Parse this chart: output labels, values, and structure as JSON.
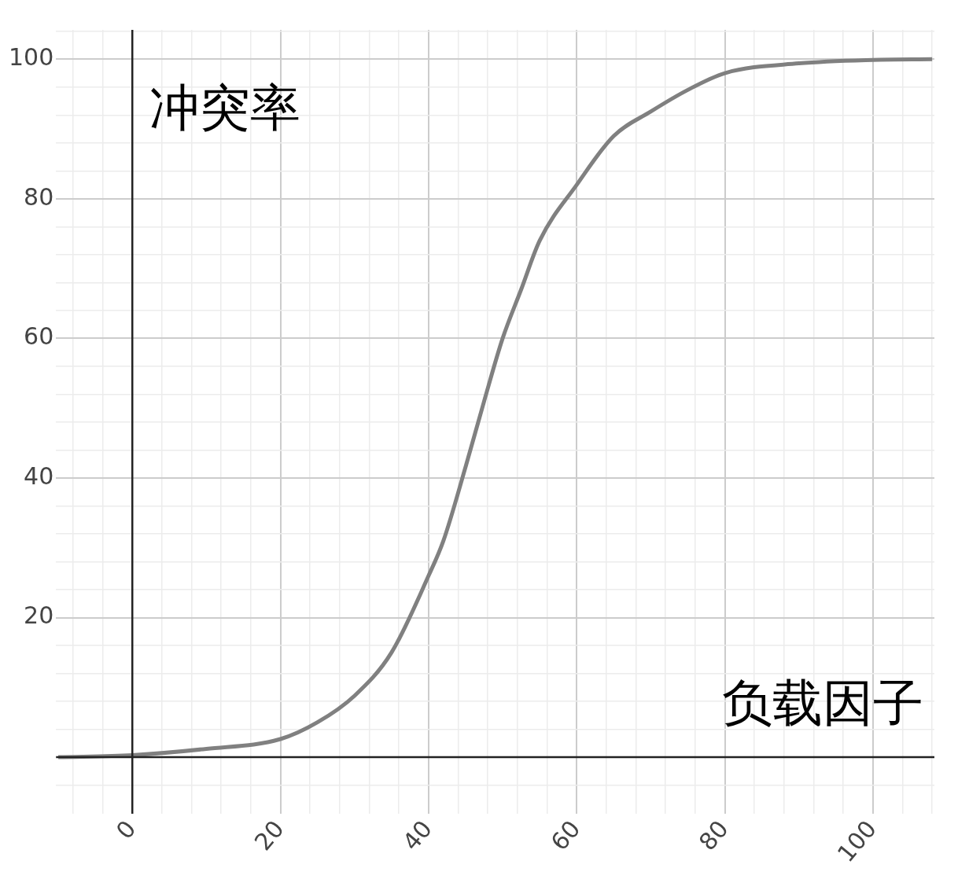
{
  "chart_data": {
    "type": "line",
    "xlabel": "负载因子",
    "ylabel": "冲突率",
    "color": "#808080",
    "grid": true,
    "legend": false,
    "marker": "none",
    "line_style": "solid",
    "x": [
      -10,
      0,
      10,
      20,
      25,
      30,
      35,
      40,
      42,
      45,
      47.5,
      50,
      52.5,
      55,
      60,
      65,
      70,
      75,
      80,
      90,
      100,
      108
    ],
    "values": [
      0,
      0.3,
      1.2,
      2.6,
      5,
      8.8,
      15,
      26,
      31,
      41.6,
      51,
      60,
      67,
      74,
      82,
      89,
      92.5,
      95.6,
      98,
      99.4,
      99.9,
      100
    ],
    "xlim": [
      -10.3,
      108.3
    ],
    "ylim": [
      -8.1,
      104.2
    ],
    "xticks": [
      {
        "value": -8,
        "label": null
      },
      {
        "value": -4,
        "label": null
      },
      0,
      {
        "value": 4,
        "label": null
      },
      {
        "value": 8,
        "label": null
      },
      {
        "value": 12,
        "label": null
      },
      {
        "value": 16,
        "label": null
      },
      20,
      {
        "value": 24,
        "label": null
      },
      {
        "value": 28,
        "label": null
      },
      {
        "value": 32,
        "label": null
      },
      {
        "value": 36,
        "label": null
      },
      40,
      {
        "value": 44,
        "label": null
      },
      {
        "value": 48,
        "label": null
      },
      {
        "value": 52,
        "label": null
      },
      {
        "value": 56,
        "label": null
      },
      60,
      {
        "value": 64,
        "label": null
      },
      {
        "value": 68,
        "label": null
      },
      {
        "value": 72,
        "label": null
      },
      {
        "value": 76,
        "label": null
      },
      80,
      {
        "value": 84,
        "label": null
      },
      {
        "value": 88,
        "label": null
      },
      {
        "value": 92,
        "label": null
      },
      {
        "value": 96,
        "label": null
      },
      100,
      {
        "value": 104,
        "label": null
      },
      {
        "value": 108,
        "label": null
      }
    ],
    "yticks": [
      {
        "value": -4,
        "label": null
      },
      {
        "value": 0,
        "label": null
      },
      {
        "value": 4,
        "label": null
      },
      {
        "value": 8,
        "label": null
      },
      {
        "value": 12,
        "label": null
      },
      {
        "value": 16,
        "label": null
      },
      20,
      {
        "value": 24,
        "label": null
      },
      {
        "value": 28,
        "label": null
      },
      {
        "value": 32,
        "label": null
      },
      {
        "value": 36,
        "label": null
      },
      40,
      {
        "value": 44,
        "label": null
      },
      {
        "value": 48,
        "label": null
      },
      {
        "value": 52,
        "label": null
      },
      {
        "value": 56,
        "label": null
      },
      60,
      {
        "value": 64,
        "label": null
      },
      {
        "value": 68,
        "label": null
      },
      {
        "value": 72,
        "label": null
      },
      {
        "value": 76,
        "label": null
      },
      80,
      {
        "value": 84,
        "label": null
      },
      {
        "value": 88,
        "label": null
      },
      {
        "value": 92,
        "label": null
      },
      {
        "value": 96,
        "label": null
      },
      100,
      {
        "value": 104,
        "label": null
      }
    ]
  }
}
